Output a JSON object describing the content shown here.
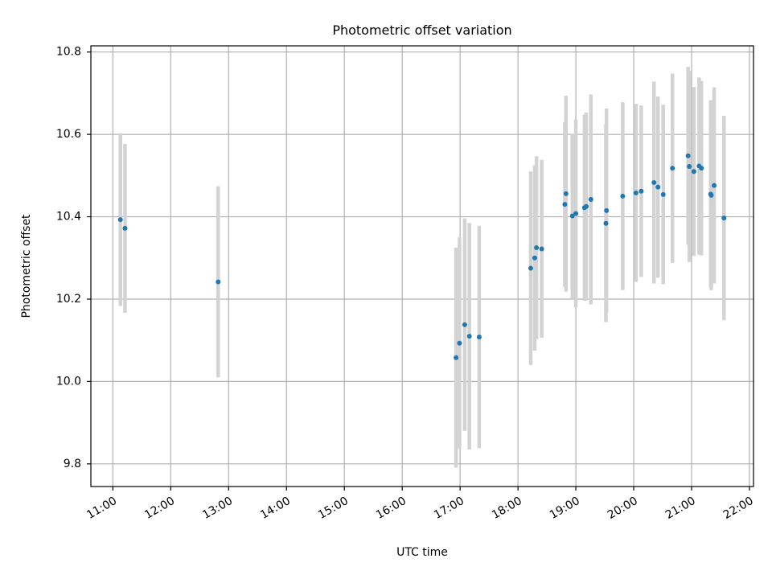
{
  "chart_data": {
    "type": "scatter",
    "title": "Photometric offset variation",
    "xlabel": "UTC time",
    "ylabel": "Photometric offset",
    "grid": true,
    "xlim_hours": [
      10.62,
      22.07
    ],
    "ylim": [
      9.745,
      10.815
    ],
    "x_ticks": [
      {
        "label": "11:00",
        "value": 11
      },
      {
        "label": "12:00",
        "value": 12
      },
      {
        "label": "13:00",
        "value": 13
      },
      {
        "label": "14:00",
        "value": 14
      },
      {
        "label": "15:00",
        "value": 15
      },
      {
        "label": "16:00",
        "value": 16
      },
      {
        "label": "17:00",
        "value": 17
      },
      {
        "label": "18:00",
        "value": 18
      },
      {
        "label": "19:00",
        "value": 19
      },
      {
        "label": "20:00",
        "value": 20
      },
      {
        "label": "21:00",
        "value": 21
      },
      {
        "label": "22:00",
        "value": 22
      }
    ],
    "y_ticks": [
      {
        "label": "9.8",
        "value": 9.8
      },
      {
        "label": "10.0",
        "value": 10.0
      },
      {
        "label": "10.2",
        "value": 10.2
      },
      {
        "label": "10.4",
        "value": 10.4
      },
      {
        "label": "10.6",
        "value": 10.6
      },
      {
        "label": "10.8",
        "value": 10.8
      }
    ],
    "colors": {
      "marker": "#1f77b4",
      "errorbar": "#d3d3d3",
      "grid": "#b0b0b0",
      "frame": "#000000"
    },
    "points": [
      {
        "t": 11.13,
        "y": 10.393,
        "err": 0.21
      },
      {
        "t": 11.21,
        "y": 10.372,
        "err": 0.205
      },
      {
        "t": 12.82,
        "y": 10.242,
        "err": 0.232
      },
      {
        "t": 16.93,
        "y": 10.058,
        "err": 0.267
      },
      {
        "t": 16.99,
        "y": 10.093,
        "err": 0.257
      },
      {
        "t": 17.08,
        "y": 10.138,
        "err": 0.258
      },
      {
        "t": 17.16,
        "y": 10.11,
        "err": 0.275
      },
      {
        "t": 17.33,
        "y": 10.108,
        "err": 0.27
      },
      {
        "t": 18.22,
        "y": 10.275,
        "err": 0.235
      },
      {
        "t": 18.29,
        "y": 10.3,
        "err": 0.225
      },
      {
        "t": 18.32,
        "y": 10.325,
        "err": 0.222
      },
      {
        "t": 18.41,
        "y": 10.322,
        "err": 0.216
      },
      {
        "t": 18.81,
        "y": 10.43,
        "err": 0.2
      },
      {
        "t": 18.83,
        "y": 10.456,
        "err": 0.238
      },
      {
        "t": 18.94,
        "y": 10.402,
        "err": 0.2
      },
      {
        "t": 19.0,
        "y": 10.408,
        "err": 0.228
      },
      {
        "t": 19.15,
        "y": 10.422,
        "err": 0.226
      },
      {
        "t": 19.18,
        "y": 10.425,
        "err": 0.228
      },
      {
        "t": 19.26,
        "y": 10.442,
        "err": 0.255
      },
      {
        "t": 19.52,
        "y": 10.384,
        "err": 0.24
      },
      {
        "t": 19.53,
        "y": 10.415,
        "err": 0.248
      },
      {
        "t": 19.81,
        "y": 10.45,
        "err": 0.228
      },
      {
        "t": 20.04,
        "y": 10.458,
        "err": 0.216
      },
      {
        "t": 20.13,
        "y": 10.462,
        "err": 0.208
      },
      {
        "t": 20.35,
        "y": 10.483,
        "err": 0.245
      },
      {
        "t": 20.42,
        "y": 10.472,
        "err": 0.22
      },
      {
        "t": 20.51,
        "y": 10.454,
        "err": 0.218
      },
      {
        "t": 20.67,
        "y": 10.518,
        "err": 0.23
      },
      {
        "t": 20.94,
        "y": 10.548,
        "err": 0.216
      },
      {
        "t": 20.96,
        "y": 10.522,
        "err": 0.232
      },
      {
        "t": 21.04,
        "y": 10.51,
        "err": 0.205
      },
      {
        "t": 21.13,
        "y": 10.523,
        "err": 0.215
      },
      {
        "t": 21.17,
        "y": 10.518,
        "err": 0.212
      },
      {
        "t": 21.33,
        "y": 10.455,
        "err": 0.228
      },
      {
        "t": 21.34,
        "y": 10.452,
        "err": 0.23
      },
      {
        "t": 21.39,
        "y": 10.476,
        "err": 0.238
      },
      {
        "t": 21.56,
        "y": 10.397,
        "err": 0.248
      }
    ]
  }
}
